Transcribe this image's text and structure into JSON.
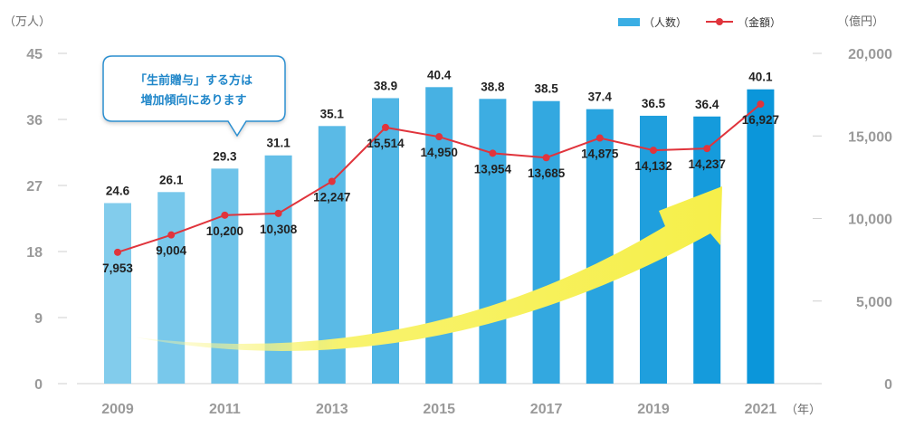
{
  "chart_data": {
    "type": "bar",
    "x": [
      2009,
      2010,
      2011,
      2012,
      2013,
      2014,
      2015,
      2016,
      2017,
      2018,
      2019,
      2020,
      2021
    ],
    "x_tick_labels": [
      "2009",
      "2011",
      "2013",
      "2015",
      "2017",
      "2019",
      "2021"
    ],
    "series": [
      {
        "name": "（人数）",
        "type": "bar",
        "axis": "left",
        "values": [
          24.6,
          26.1,
          29.3,
          31.1,
          35.1,
          38.9,
          40.4,
          38.8,
          38.5,
          37.4,
          36.5,
          36.4,
          40.1
        ],
        "labels": [
          "24.6",
          "26.1",
          "29.3",
          "31.1",
          "35.1",
          "38.9",
          "40.4",
          "38.8",
          "38.5",
          "37.4",
          "36.5",
          "36.4",
          "40.1"
        ]
      },
      {
        "name": "（金額）",
        "type": "line",
        "axis": "right",
        "values": [
          7953,
          9004,
          10200,
          10308,
          12247,
          15514,
          14950,
          13954,
          13685,
          14875,
          14132,
          14237,
          16927
        ],
        "labels": [
          "7,953",
          "9,004",
          "10,200",
          "10,308",
          "12,247",
          "15,514",
          "14,950",
          "13,954",
          "13,685",
          "14,875",
          "14,132",
          "14,237",
          "16,927"
        ]
      }
    ],
    "y_left": {
      "unit": "（万人）",
      "ylim": [
        0,
        45
      ],
      "ticks": [
        "0",
        "9",
        "18",
        "27",
        "36",
        "45"
      ]
    },
    "y_right": {
      "unit": "（億円）",
      "ylim": [
        0,
        20000
      ],
      "ticks": [
        "0",
        "5,000",
        "10,000",
        "15,000",
        "20,000"
      ]
    },
    "x_unit": "（年）",
    "legend": {
      "position": "top-right",
      "items": [
        "（人数）",
        "（金額）"
      ]
    },
    "annotation": {
      "lines": [
        "「生前贈与」する方は",
        "増加傾向にあります"
      ]
    },
    "colors": {
      "bar_light": "#82ccec",
      "bar_dark": "#0b96da",
      "line": "#e0343c",
      "axis_text": "#9a9a9a",
      "callout_border": "#2a8fd0",
      "arrow_fill": "#f8f36e"
    },
    "grid": false
  }
}
